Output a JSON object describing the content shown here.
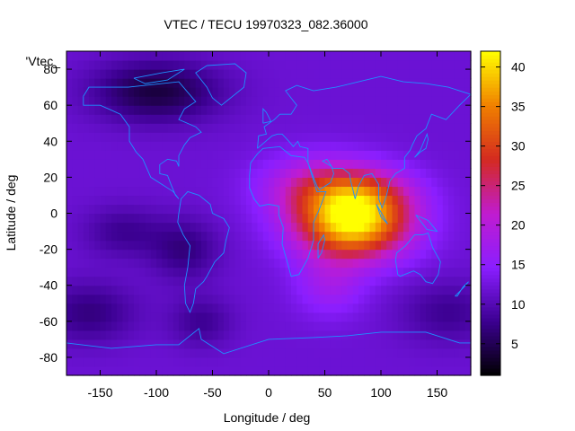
{
  "chart_data": {
    "type": "heatmap",
    "title": "VTEC / TECU 19970323_082.36000",
    "xlabel": "Longitude / deg",
    "ylabel": "Latitude / deg",
    "xlim": [
      -180,
      180
    ],
    "ylim": [
      -90,
      90
    ],
    "xticks": [
      -150,
      -100,
      -50,
      0,
      50,
      100,
      150
    ],
    "yticks": [
      -80,
      -60,
      -40,
      -20,
      0,
      20,
      40,
      60,
      80
    ],
    "colorbar": {
      "min": 1,
      "max": 42,
      "ticks": [
        5,
        10,
        15,
        20,
        25,
        30,
        35,
        40
      ],
      "palette": [
        "#000000",
        "#3b0090",
        "#8a1eff",
        "#c01cd0",
        "#d42a20",
        "#f08000",
        "#ffff00"
      ]
    },
    "legend_entry": "'Vtec_",
    "grid": false,
    "background_value": 12,
    "features": [
      {
        "lon": 75,
        "lat": -5,
        "sig_lon": 35,
        "sig_lat": 14,
        "amp": 29
      },
      {
        "lon": 45,
        "lat": 15,
        "sig_lon": 35,
        "sig_lat": 12,
        "amp": 10
      },
      {
        "lon": 90,
        "lat": 12,
        "sig_lon": 30,
        "sig_lat": 10,
        "amp": 7
      },
      {
        "lon": 55,
        "lat": -40,
        "sig_lon": 22,
        "sig_lat": 12,
        "amp": 5
      },
      {
        "lon": -100,
        "lat": 68,
        "sig_lon": 40,
        "sig_lat": 12,
        "amp": -8
      },
      {
        "lon": -75,
        "lat": -20,
        "sig_lon": 22,
        "sig_lat": 12,
        "amp": -5
      },
      {
        "lon": -130,
        "lat": -10,
        "sig_lon": 25,
        "sig_lat": 10,
        "amp": -4
      },
      {
        "lon": -160,
        "lat": -55,
        "sig_lon": 30,
        "sig_lat": 12,
        "amp": -5
      },
      {
        "lon": 160,
        "lat": -55,
        "sig_lon": 30,
        "sig_lat": 12,
        "amp": -4
      },
      {
        "lon": -60,
        "lat": -60,
        "sig_lon": 20,
        "sig_lat": 10,
        "amp": -4
      }
    ],
    "coastline_color": "#1e90ff"
  }
}
